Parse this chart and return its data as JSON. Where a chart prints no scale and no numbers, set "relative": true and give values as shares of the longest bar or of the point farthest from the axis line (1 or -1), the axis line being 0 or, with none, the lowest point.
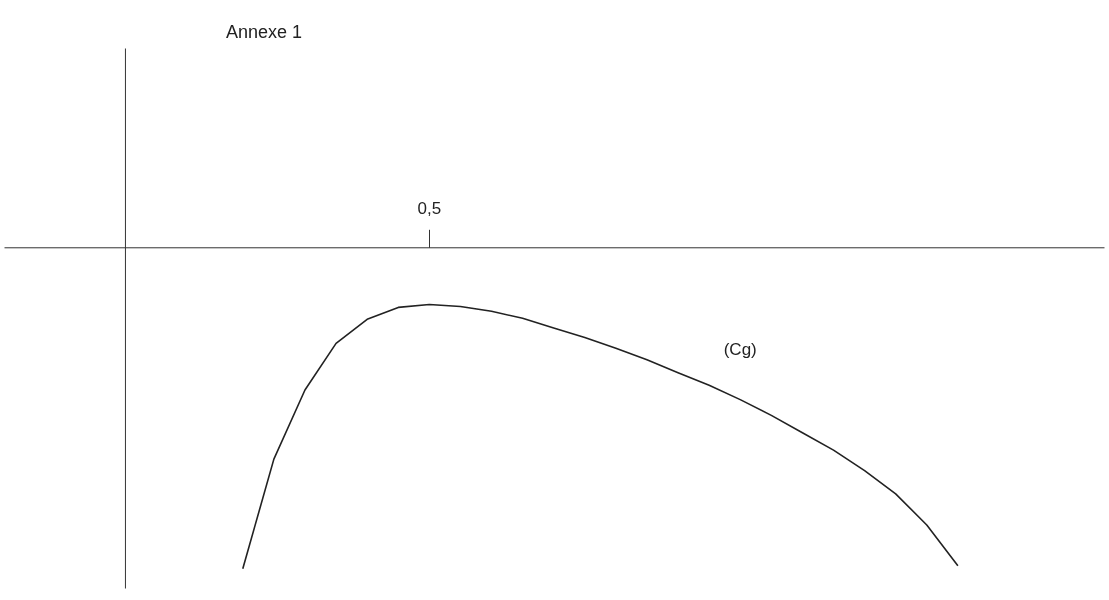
{
  "chart_data": {
    "type": "line",
    "title": "Annexe 1",
    "relative": true,
    "annotations": [
      "0,5"
    ],
    "marker": "none",
    "line_style": "solid",
    "categories": [
      null,
      null,
      null,
      null,
      null,
      null,
      null,
      null,
      null,
      null,
      null,
      null,
      null,
      null,
      null,
      null,
      null,
      null,
      null,
      null,
      null,
      null,
      null,
      null
    ],
    "series": [
      {
        "name": "(Cg)",
        "color": "#222222",
        "values": [
          -1,
          -0.659,
          -0.444,
          -0.299,
          -0.224,
          -0.187,
          -0.178,
          -0.184,
          -0.199,
          -0.221,
          -0.251,
          -0.281,
          -0.314,
          -0.35,
          -0.39,
          -0.429,
          -0.474,
          -0.523,
          -0.577,
          -0.631,
          -0.695,
          -0.767,
          -0.864,
          -0.991
        ]
      }
    ]
  }
}
